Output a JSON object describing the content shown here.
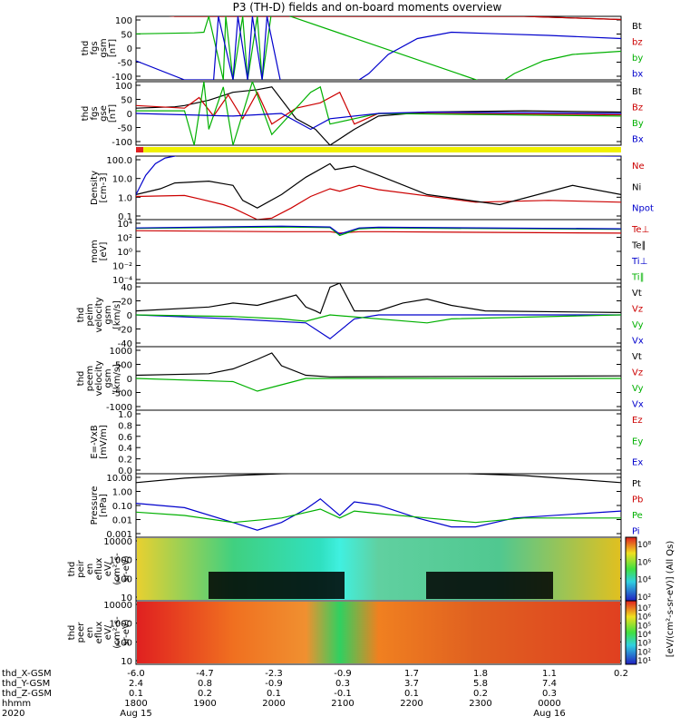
{
  "title": "P3 (TH-D) fields and on-board moments overview",
  "chart_data": [
    {
      "type": "line",
      "id": "fgs",
      "ylabel": [
        "thd",
        "fgs",
        "gsm",
        "[nT]"
      ],
      "ticks": [
        "100",
        "50",
        "0",
        "-50",
        "-100"
      ],
      "ylim": [
        -100,
        100
      ],
      "legend": [
        {
          "label": "Bt",
          "color": "#000000"
        },
        {
          "label": "bz",
          "color": "#cc0000"
        },
        {
          "label": "by",
          "color": "#00b000"
        },
        {
          "label": "bx",
          "color": "#0000cc"
        }
      ],
      "series": [
        {
          "name": "Bt",
          "color": "#000000",
          "x": [
            0,
            0.08,
            0.1,
            0.8,
            0.9,
            1
          ],
          "y": [
            110,
            100,
            100,
            100,
            95,
            90
          ]
        },
        {
          "name": "bz",
          "color": "#cc0000",
          "x": [
            0,
            0.08,
            0.8,
            0.9,
            1
          ],
          "y": [
            110,
            100,
            100,
            95,
            90
          ]
        },
        {
          "name": "by",
          "color": "#00b000",
          "x": [
            0,
            0.12,
            0.14,
            0.15,
            0.18,
            0.185,
            0.2,
            0.22,
            0.23,
            0.25,
            0.26,
            0.28,
            0.74,
            0.78,
            0.84,
            0.9,
            1
          ],
          "y": [
            45,
            48,
            50,
            100,
            -100,
            100,
            -100,
            100,
            -100,
            100,
            -100,
            120,
            -120,
            -80,
            -40,
            -20,
            -10
          ]
        },
        {
          "name": "bx",
          "color": "#0000cc",
          "x": [
            0,
            0.1,
            0.16,
            0.17,
            0.2,
            0.21,
            0.23,
            0.24,
            0.26,
            0.27,
            0.3,
            0.44,
            0.48,
            0.52,
            0.58,
            0.65,
            0.75,
            0.85,
            1
          ],
          "y": [
            -40,
            -100,
            -100,
            100,
            -100,
            100,
            -100,
            100,
            -100,
            100,
            -120,
            -120,
            -80,
            -20,
            30,
            50,
            45,
            40,
            30
          ]
        }
      ]
    },
    {
      "type": "line",
      "id": "fgs_gse",
      "ylabel": [
        "thd",
        "fgs",
        "gse",
        "[nT]"
      ],
      "ticks": [
        "100",
        "50",
        "0",
        "-50",
        "-100"
      ],
      "ylim": [
        -120,
        120
      ],
      "legend": [
        {
          "label": "Bt",
          "color": "#000000"
        },
        {
          "label": "Bz",
          "color": "#cc0000"
        },
        {
          "label": "By",
          "color": "#00b000"
        },
        {
          "label": "Bx",
          "color": "#0000cc"
        }
      ],
      "series": [
        {
          "name": "Bt",
          "color": "#000000",
          "x": [
            0,
            0.08,
            0.1,
            0.15,
            0.2,
            0.25,
            0.28,
            0.33,
            0.37,
            0.4,
            0.45,
            0.5,
            0.6,
            0.8,
            1
          ],
          "y": [
            20,
            25,
            30,
            50,
            80,
            90,
            100,
            -20,
            -60,
            -120,
            -60,
            -10,
            5,
            10,
            5
          ]
        },
        {
          "name": "Bz",
          "color": "#cc0000",
          "x": [
            0,
            0.1,
            0.13,
            0.16,
            0.19,
            0.22,
            0.25,
            0.28,
            0.33,
            0.38,
            0.42,
            0.45,
            0.5,
            0.6,
            1
          ],
          "y": [
            30,
            20,
            60,
            -10,
            70,
            -20,
            80,
            -40,
            20,
            40,
            80,
            -40,
            0,
            0,
            -5
          ]
        },
        {
          "name": "By",
          "color": "#00b000",
          "x": [
            0,
            0.1,
            0.12,
            0.14,
            0.15,
            0.18,
            0.2,
            0.24,
            0.28,
            0.36,
            0.38,
            0.4,
            0.45,
            0.5,
            1
          ],
          "y": [
            10,
            10,
            -120,
            120,
            -60,
            100,
            -120,
            120,
            -80,
            80,
            100,
            -40,
            -20,
            0,
            -10
          ]
        },
        {
          "name": "Bx",
          "color": "#0000cc",
          "x": [
            0,
            0.1,
            0.2,
            0.3,
            0.36,
            0.4,
            0.5,
            0.6,
            1
          ],
          "y": [
            0,
            -5,
            -10,
            0,
            -60,
            -20,
            0,
            5,
            0
          ]
        }
      ]
    },
    {
      "type": "line",
      "id": "density",
      "ylabel": [
        "Density",
        "[cm-3]"
      ],
      "ticks": [
        "100.0",
        "10.0",
        "1.0",
        "0.1"
      ],
      "ylim": [
        0.05,
        100
      ],
      "legend": [
        {
          "label": "Ne",
          "color": "#cc0000"
        },
        {
          "label": "Ni",
          "color": "#000000"
        },
        {
          "label": "Npot",
          "color": "#0000cc"
        }
      ],
      "series": [
        {
          "name": "Ne",
          "color": "#cc0000",
          "x": [
            0,
            0.1,
            0.13,
            0.18,
            0.2,
            0.25,
            0.28,
            0.32,
            0.36,
            0.4,
            0.42,
            0.46,
            0.5,
            0.7,
            0.85,
            1
          ],
          "y": [
            0.8,
            0.9,
            0.6,
            0.3,
            0.2,
            0.05,
            0.06,
            0.2,
            0.8,
            2,
            1.5,
            3,
            1.8,
            0.4,
            0.5,
            0.4
          ]
        },
        {
          "name": "Ni",
          "color": "#000000",
          "x": [
            0,
            0.05,
            0.08,
            0.15,
            0.2,
            0.22,
            0.25,
            0.3,
            0.35,
            0.4,
            0.41,
            0.45,
            0.5,
            0.6,
            0.75,
            0.9,
            1
          ],
          "y": [
            1,
            2,
            4,
            5,
            3,
            0.5,
            0.2,
            1,
            8,
            40,
            20,
            30,
            10,
            1,
            0.3,
            3,
            1
          ]
        },
        {
          "name": "Npot",
          "color": "#0000cc",
          "x": [
            0,
            0.02,
            0.04,
            0.06,
            0.08,
            0.09,
            0.1,
            1
          ],
          "y": [
            1,
            10,
            40,
            80,
            100,
            120,
            120,
            100
          ]
        }
      ]
    },
    {
      "type": "line",
      "id": "mom_temp",
      "ylabel": [
        "mom",
        "[eV]"
      ],
      "ticks": [
        "10⁴",
        "10²",
        "10⁰",
        "10⁻²",
        "10⁻⁴"
      ],
      "ylim": [
        0.0001,
        10000
      ],
      "legend": [
        {
          "label": "Te⊥",
          "color": "#cc0000"
        },
        {
          "label": "Te∥",
          "color": "#000000"
        },
        {
          "label": "Ti⊥",
          "color": "#0000cc"
        },
        {
          "label": "Ti∥",
          "color": "#00b000"
        }
      ],
      "series": [
        {
          "name": "Te⊥",
          "color": "#cc0000",
          "x": [
            0,
            0.3,
            0.4,
            0.42,
            0.46,
            0.5,
            1
          ],
          "y": [
            400,
            300,
            300,
            200,
            300,
            300,
            200
          ]
        },
        {
          "name": "Ti∥",
          "color": "#00b000",
          "x": [
            0,
            0.3,
            0.4,
            0.42,
            0.46,
            0.5,
            1
          ],
          "y": [
            800,
            1200,
            1000,
            100,
            700,
            900,
            600
          ]
        },
        {
          "name": "Ti⊥",
          "color": "#0000cc",
          "x": [
            0,
            0.3,
            0.4,
            0.42,
            0.46,
            0.5,
            1
          ],
          "y": [
            900,
            1500,
            1200,
            150,
            900,
            1100,
            700
          ]
        }
      ]
    },
    {
      "type": "line",
      "id": "peim_velocity",
      "ylabel": [
        "thd",
        "peim",
        "velocity",
        "gsm",
        "[km/s]"
      ],
      "ticks": [
        "40",
        "20",
        "0",
        "-20",
        "-40"
      ],
      "ylim": [
        -40,
        40
      ],
      "legend": [
        {
          "label": "Vt",
          "color": "#000000"
        },
        {
          "label": "Vz",
          "color": "#cc0000"
        },
        {
          "label": "Vy",
          "color": "#00b000"
        },
        {
          "label": "Vx",
          "color": "#0000cc"
        }
      ],
      "series": [
        {
          "name": "Vt",
          "color": "#000000",
          "x": [
            0,
            0.15,
            0.2,
            0.25,
            0.3,
            0.33,
            0.35,
            0.37,
            0.38,
            0.4,
            0.42,
            0.45,
            0.5,
            0.55,
            0.6,
            0.65,
            0.72,
            1
          ],
          "y": [
            5,
            10,
            15,
            12,
            20,
            25,
            10,
            5,
            2,
            35,
            40,
            5,
            5,
            15,
            20,
            12,
            5,
            3
          ]
        },
        {
          "name": "Vx",
          "color": "#0000cc",
          "x": [
            0,
            0.2,
            0.35,
            0.4,
            0.45,
            0.5,
            1
          ],
          "y": [
            0,
            -5,
            -10,
            -30,
            -5,
            0,
            0
          ]
        },
        {
          "name": "Vy",
          "color": "#00b000",
          "x": [
            0,
            0.2,
            0.3,
            0.35,
            0.4,
            0.6,
            0.65,
            1
          ],
          "y": [
            0,
            -2,
            -5,
            -8,
            0,
            -10,
            -5,
            0
          ]
        }
      ]
    },
    {
      "type": "line",
      "id": "peem_velocity",
      "ylabel": [
        "thd",
        "peem",
        "velocity",
        "gsm",
        "[km/s]"
      ],
      "ticks": [
        "1000",
        "500",
        "0",
        "-500",
        "-1000"
      ],
      "ylim": [
        -1000,
        1000
      ],
      "legend": [
        {
          "label": "Vt",
          "color": "#000000"
        },
        {
          "label": "Vz",
          "color": "#cc0000"
        },
        {
          "label": "Vy",
          "color": "#00b000"
        },
        {
          "label": "Vx",
          "color": "#0000cc"
        }
      ],
      "series": [
        {
          "name": "Vt",
          "color": "#000000",
          "x": [
            0,
            0.15,
            0.2,
            0.25,
            0.28,
            0.3,
            0.35,
            0.4,
            1
          ],
          "y": [
            100,
            150,
            300,
            600,
            800,
            400,
            100,
            50,
            80
          ]
        },
        {
          "name": "Vy",
          "color": "#00b000",
          "x": [
            0,
            0.2,
            0.25,
            0.3,
            0.35,
            1
          ],
          "y": [
            0,
            -100,
            -400,
            -200,
            0,
            0
          ]
        }
      ]
    },
    {
      "type": "line",
      "id": "efield",
      "ylabel": [
        "E=-VxB",
        "[mV/m]"
      ],
      "ticks": [
        "1.0",
        "0.8",
        "0.6",
        "0.4",
        "0.2",
        "0.0"
      ],
      "ylim": [
        0,
        1
      ],
      "legend": [
        {
          "label": "Ez",
          "color": "#cc0000"
        },
        {
          "label": "Ey",
          "color": "#00b000"
        },
        {
          "label": "Ex",
          "color": "#0000cc"
        }
      ],
      "series": []
    },
    {
      "type": "line",
      "id": "pressure",
      "ylabel": [
        "Pressure",
        "[nPa]"
      ],
      "ticks": [
        "10.00",
        "1.00",
        "0.10",
        "0.01",
        "0.001"
      ],
      "ylim": [
        0.001,
        20
      ],
      "legend": [
        {
          "label": "Pt",
          "color": "#000000"
        },
        {
          "label": "Pb",
          "color": "#cc0000"
        },
        {
          "label": "Pe",
          "color": "#00b000"
        },
        {
          "label": "Pi",
          "color": "#0000cc"
        }
      ],
      "series": [
        {
          "name": "Pt",
          "color": "#000000",
          "x": [
            0,
            0.1,
            0.2,
            0.3,
            0.4,
            0.6,
            0.8,
            1
          ],
          "y": [
            5,
            10,
            15,
            20,
            22,
            25,
            15,
            5
          ]
        },
        {
          "name": "Pi",
          "color": "#0000cc",
          "x": [
            0,
            0.1,
            0.2,
            0.25,
            0.3,
            0.35,
            0.38,
            0.42,
            0.45,
            0.5,
            0.58,
            0.65,
            0.7,
            0.78,
            1
          ],
          "y": [
            0.2,
            0.1,
            0.01,
            0.003,
            0.01,
            0.08,
            0.4,
            0.03,
            0.25,
            0.15,
            0.02,
            0.005,
            0.005,
            0.02,
            0.06
          ]
        },
        {
          "name": "Pe",
          "color": "#00b000",
          "x": [
            0,
            0.1,
            0.2,
            0.3,
            0.38,
            0.42,
            0.45,
            0.5,
            0.6,
            0.7,
            0.8,
            1
          ],
          "y": [
            0.05,
            0.03,
            0.01,
            0.02,
            0.08,
            0.02,
            0.06,
            0.04,
            0.02,
            0.01,
            0.02,
            0.02
          ]
        }
      ]
    },
    {
      "type": "heatmap",
      "id": "peir",
      "ylabel": [
        "thd",
        "peir",
        "en",
        "eflux",
        "eV/",
        "(cm²-s-",
        "sr-eV)"
      ],
      "ticks": [
        "10000",
        "1000",
        "100",
        "10"
      ],
      "colorbar_ticks": [
        "10⁸",
        "10⁶",
        "10⁴",
        "10²"
      ]
    },
    {
      "type": "heatmap",
      "id": "peer",
      "ylabel": [
        "thd",
        "peer",
        "en",
        "eflux",
        "eV/",
        "(cm²-s-",
        "sr-eV)"
      ],
      "ticks": [
        "10000",
        "1000",
        "100",
        "10"
      ],
      "colorbar_ticks": [
        "10⁷",
        "10⁶",
        "10⁵",
        "10⁴",
        "10³",
        "10²",
        "10¹"
      ]
    }
  ],
  "colorbar_label": "[eV/(cm²-s-sr-eV)] (All Qs)",
  "xaxis": {
    "rows": [
      {
        "label": "thd_X-GSM",
        "values": [
          "-6.0",
          "-4.7",
          "-2.3",
          "-0.9",
          "1.7",
          "1.8",
          "1.1",
          "0.2"
        ]
      },
      {
        "label": "thd_Y-GSM",
        "values": [
          "2.4",
          "0.8",
          "-0.9",
          "0.3",
          "3.7",
          "5.8",
          "7.4",
          ""
        ]
      },
      {
        "label": "thd_Z-GSM",
        "values": [
          "0.1",
          "0.2",
          "0.1",
          "-0.1",
          "0.1",
          "0.2",
          "0.3",
          ""
        ]
      },
      {
        "label": "hhmm",
        "values": [
          "1800",
          "1900",
          "2000",
          "2100",
          "2200",
          "2300",
          "0000",
          ""
        ]
      },
      {
        "label": "2020",
        "values": [
          "Aug 15",
          "",
          "",
          "",
          "",
          "",
          "Aug 16",
          ""
        ]
      }
    ]
  }
}
